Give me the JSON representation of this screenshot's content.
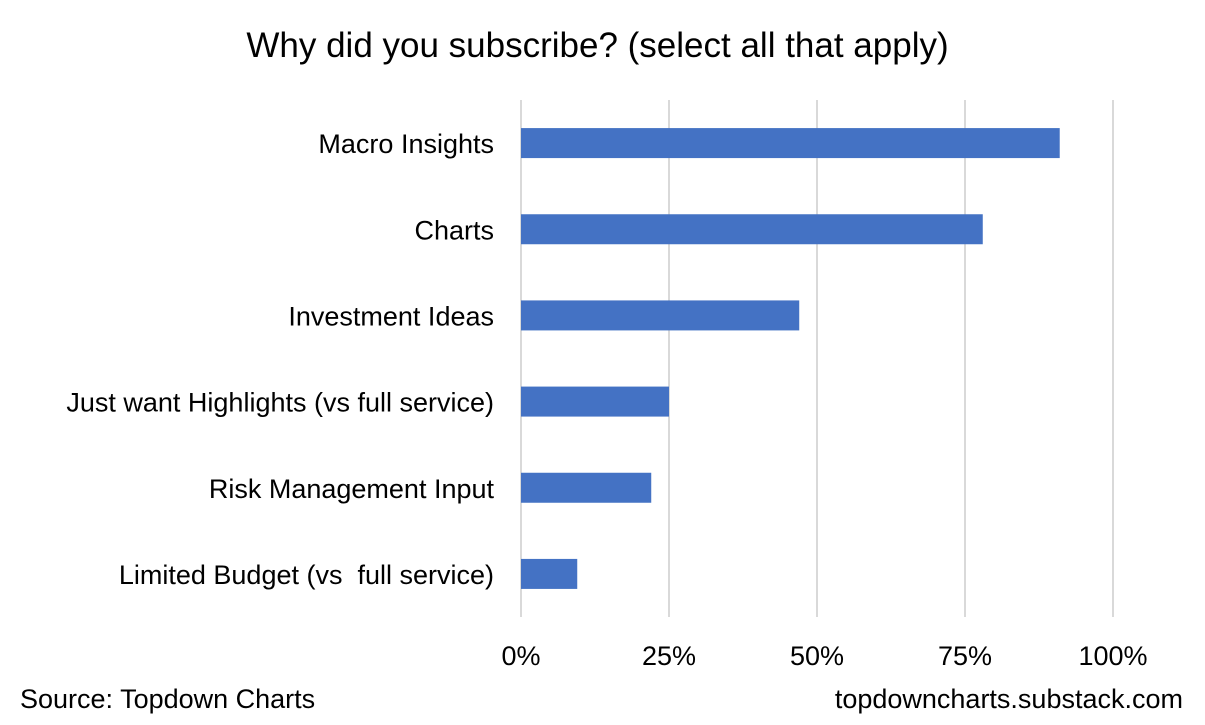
{
  "chart_data": {
    "type": "bar",
    "orientation": "horizontal",
    "title": "Why did you subscribe? (select all that apply)",
    "categories": [
      "Macro Insights",
      "Charts",
      "Investment Ideas",
      "Just want Highlights (vs full service)",
      "Risk Management Input",
      "Limited Budget (vs  full service)"
    ],
    "values": [
      91,
      78,
      47,
      25,
      22,
      9.5
    ],
    "value_unit": "%",
    "xlim": [
      0,
      100
    ],
    "xticks": [
      "0%",
      "25%",
      "50%",
      "75%",
      "100%"
    ],
    "xtick_values": [
      0,
      25,
      50,
      75,
      100
    ],
    "grid": "vertical",
    "bar_color": "#4472C4",
    "grid_color": "#D9D9D9"
  },
  "footer": {
    "source": "Source: Topdown Charts",
    "site": "topdowncharts.substack.com"
  }
}
